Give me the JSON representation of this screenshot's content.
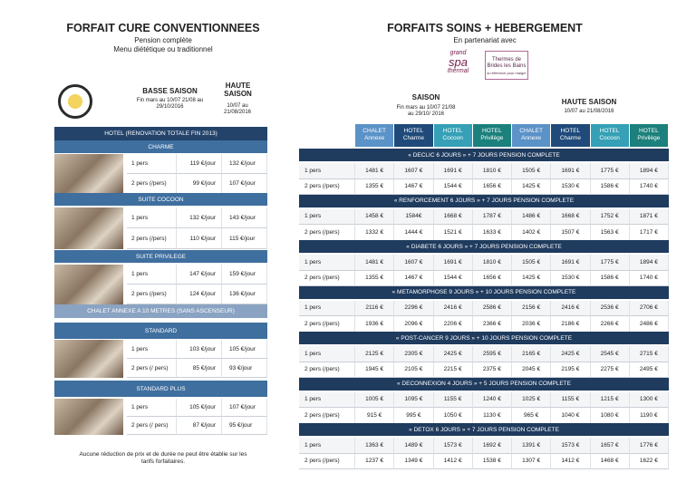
{
  "left": {
    "title": "FORFAIT CURE CONVENTIONNEES",
    "subtitle": "Pension complète",
    "subtitle2": "Menu diététique ou traditionnel",
    "seasons": [
      {
        "title": "BASSE SAISON",
        "dates": "Fin mars au 10/07 21/08 au 29/10/2016"
      },
      {
        "title": "HAUTE SAISON",
        "dates": "10/07 au 21/08/2016"
      }
    ],
    "groups": [
      {
        "title": "HOTEL (RENOVATION TOTALE FIN 2013)",
        "sections": [
          {
            "title": "CHARME",
            "rows": [
              {
                "label": "1 pers",
                "prices": [
                  "119 €/jour",
                  "132 €/jour"
                ]
              },
              {
                "label": "2 pers (/pers)",
                "prices": [
                  "99 €/jour",
                  "107 €/jour"
                ]
              }
            ]
          },
          {
            "title": "SUITE COCOON",
            "rows": [
              {
                "label": "1 pers",
                "prices": [
                  "132 €/jour",
                  "143 €/jour"
                ]
              },
              {
                "label": "2 pers (/pers)",
                "prices": [
                  "110 €/jour",
                  "115 €/jour"
                ]
              }
            ]
          },
          {
            "title": "SUITE PRIVILEGE",
            "rows": [
              {
                "label": "1 pers",
                "prices": [
                  "147 €/jour",
                  "159 €/jour"
                ]
              },
              {
                "label": "2 pers (/pers)",
                "prices": [
                  "124 €/jour",
                  "136 €/jour"
                ]
              }
            ]
          }
        ]
      },
      {
        "title": "CHALET ANNEXE A 10 METRES (SANS ASCENSEUR)",
        "sections": [
          {
            "title": "STANDARD",
            "rows": [
              {
                "label": "1 pers",
                "prices": [
                  "103 €/jour",
                  "105 €/jour"
                ]
              },
              {
                "label": "2 pers (/ pers)",
                "prices": [
                  "85 €/jour",
                  "93 €/jour"
                ]
              }
            ]
          },
          {
            "title": "STANDARD PLUS",
            "rows": [
              {
                "label": "1 pers",
                "prices": [
                  "105 €/jour",
                  "107 €/jour"
                ]
              },
              {
                "label": "2 pers (/ pers)",
                "prices": [
                  "87 €/jour",
                  "95 €/jour"
                ]
              }
            ]
          }
        ]
      }
    ],
    "note": "Aucune réduction de prix et de durée ne peut être établie sur les tarifs forfaitaires."
  },
  "right": {
    "title": "FORFAITS SOINS + HEBERGEMENT",
    "partner": "En partenariat avec",
    "logos": [
      {
        "line1": "grand",
        "line2": "spa",
        "line3": "thermal"
      },
      {
        "line1": "Thermes de",
        "line2": "Brides les Bains",
        "line3": "la référence pour maigrir"
      }
    ],
    "seasons": [
      {
        "title": "SAISON",
        "dates": "Fin mars au 10/07 21/08 au 29/10/ 2016"
      },
      {
        "title": "HAUTE SAISON",
        "dates": "10/07 au 21/08/2016"
      }
    ],
    "columns": [
      {
        "kind": "CHALET",
        "name": "Annexe"
      },
      {
        "kind": "HOTEL",
        "name": "Charme"
      },
      {
        "kind": "HOTEL",
        "name": "Cocoon"
      },
      {
        "kind": "HOTEL",
        "name": "Privilège"
      },
      {
        "kind": "CHALET",
        "name": "Annexe"
      },
      {
        "kind": "HOTEL",
        "name": "Charme"
      },
      {
        "kind": "HOTEL",
        "name": "Cocoon"
      },
      {
        "kind": "HOTEL",
        "name": "Privilège"
      }
    ],
    "packages": [
      {
        "title": "« DECLIC 6 JOURS » + 7 JOURS PENSION COMPLETE",
        "rows": [
          {
            "label": "1 pers",
            "prices": [
              "1481 €",
              "1607 €",
              "1691 €",
              "1810 €",
              "1505 €",
              "1691 €",
              "1775 €",
              "1894 €"
            ]
          },
          {
            "label": "2 pers (/pers)",
            "prices": [
              "1355 €",
              "1467 €",
              "1544 €",
              "1656 €",
              "1425 €",
              "1530 €",
              "1586 €",
              "1740 €"
            ]
          }
        ]
      },
      {
        "title": "« RENFORCEMENT 6 JOURS » + 7 JOURS PENSION COMPLETE",
        "rows": [
          {
            "label": "1 pers",
            "prices": [
              "1458 €",
              "1584€",
              "1668 €",
              "1787 €",
              "1486 €",
              "1668 €",
              "1752 €",
              "1871 €"
            ]
          },
          {
            "label": "2 pers (/pers)",
            "prices": [
              "1332 €",
              "1444 €",
              "1521 €",
              "1633 €",
              "1402 €",
              "1507 €",
              "1563 €",
              "1717 €"
            ]
          }
        ]
      },
      {
        "title": "« DIABETE 6 JOURS » + 7 JOURS PENSION COMPLETE",
        "rows": [
          {
            "label": "1 pers",
            "prices": [
              "1481 €",
              "1607 €",
              "1691 €",
              "1810 €",
              "1505 €",
              "1691 €",
              "1775 €",
              "1894 €"
            ]
          },
          {
            "label": "2 pers (/pers)",
            "prices": [
              "1355 €",
              "1467 €",
              "1544 €",
              "1656 €",
              "1425 €",
              "1530 €",
              "1586 €",
              "1740 €"
            ]
          }
        ]
      },
      {
        "title": "« METAMORPHOSE 9 JOURS » + 10 JOURS PENSION COMPLETE",
        "rows": [
          {
            "label": "1 pers",
            "prices": [
              "2116 €",
              "2296 €",
              "2416 €",
              "2586 €",
              "2156 €",
              "2416 €",
              "2536 €",
              "2706 €"
            ]
          },
          {
            "label": "2 pers (/pers)",
            "prices": [
              "1936 €",
              "2096 €",
              "2206 €",
              "2366 €",
              "2036 €",
              "2186 €",
              "2266 €",
              "2486 €"
            ]
          }
        ]
      },
      {
        "title": "« POST-CANCER 9 JOURS » + 10 JOURS PENSION COMPLETE",
        "rows": [
          {
            "label": "1 pers",
            "prices": [
              "2125 €",
              "2305 €",
              "2425 €",
              "2595 €",
              "2165 €",
              "2425 €",
              "2545 €",
              "2715 €"
            ]
          },
          {
            "label": "2 pers (/pers)",
            "prices": [
              "1945 €",
              "2105 €",
              "2215 €",
              "2375 €",
              "2045 €",
              "2195 €",
              "2275 €",
              "2495 €"
            ]
          }
        ]
      },
      {
        "title": "« DECONNEXION 4 JOURS » + 5 JOURS PENSION COMPLETE",
        "rows": [
          {
            "label": "1 pers",
            "prices": [
              "1005 €",
              "1095 €",
              "1155 €",
              "1240 €",
              "1025 €",
              "1155 €",
              "1215 €",
              "1300 €"
            ]
          },
          {
            "label": "2 pers (/pers)",
            "prices": [
              "915 €",
              "995 €",
              "1050 €",
              "1130 €",
              "965 €",
              "1040 €",
              "1080 €",
              "1190 €"
            ]
          }
        ]
      },
      {
        "title": "« DETOX 6  JOURS » + 7 JOURS PENSION COMPLETE",
        "rows": [
          {
            "label": "1 pers",
            "prices": [
              "1363 €",
              "1489 €",
              "1573 €",
              "1692 €",
              "1391 €",
              "1573 €",
              "1657 €",
              "1776 €"
            ]
          },
          {
            "label": "2 pers (/pers)",
            "prices": [
              "1237 €",
              "1349 €",
              "1412 €",
              "1538 €",
              "1307 €",
              "1412 €",
              "1468 €",
              "1622 €"
            ]
          }
        ]
      }
    ]
  }
}
